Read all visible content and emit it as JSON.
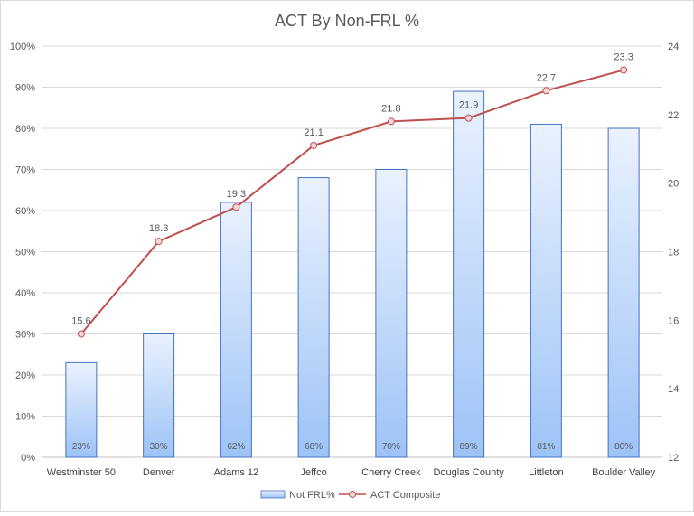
{
  "chart_data": {
    "type": "bar",
    "title": "ACT  By Non-FRL %",
    "categories": [
      "Westminster 50",
      "Denver",
      "Adams 12",
      "Jeffco",
      "Cherry Creek",
      "Douglas County",
      "Littleton",
      "Boulder Valley"
    ],
    "series": [
      {
        "name": "Not FRL%",
        "type": "bar",
        "axis": "left",
        "values": [
          23,
          30,
          62,
          68,
          70,
          89,
          81,
          80
        ],
        "labels": [
          "23%",
          "30%",
          "62%",
          "68%",
          "70%",
          "89%",
          "81%",
          "80%"
        ],
        "color": "#9dc3f7",
        "border_color": "#4472c4"
      },
      {
        "name": "ACT Composite",
        "type": "line",
        "axis": "right",
        "values": [
          15.6,
          18.3,
          19.3,
          21.1,
          21.8,
          21.9,
          22.7,
          23.3
        ],
        "labels": [
          "15.6",
          "18.3",
          "19.3",
          "21.1",
          "21.8",
          "21.9",
          "22.7",
          "23.3"
        ],
        "color": "#c0504d"
      }
    ],
    "y_left": {
      "min": 0,
      "max": 100,
      "ticks": [
        "0%",
        "10%",
        "20%",
        "30%",
        "40%",
        "50%",
        "60%",
        "70%",
        "80%",
        "90%",
        "100%"
      ]
    },
    "y_right": {
      "min": 12,
      "max": 24,
      "ticks": [
        "12",
        "14",
        "16",
        "18",
        "20",
        "22",
        "24"
      ]
    },
    "grid": true,
    "legend": "bottom"
  }
}
